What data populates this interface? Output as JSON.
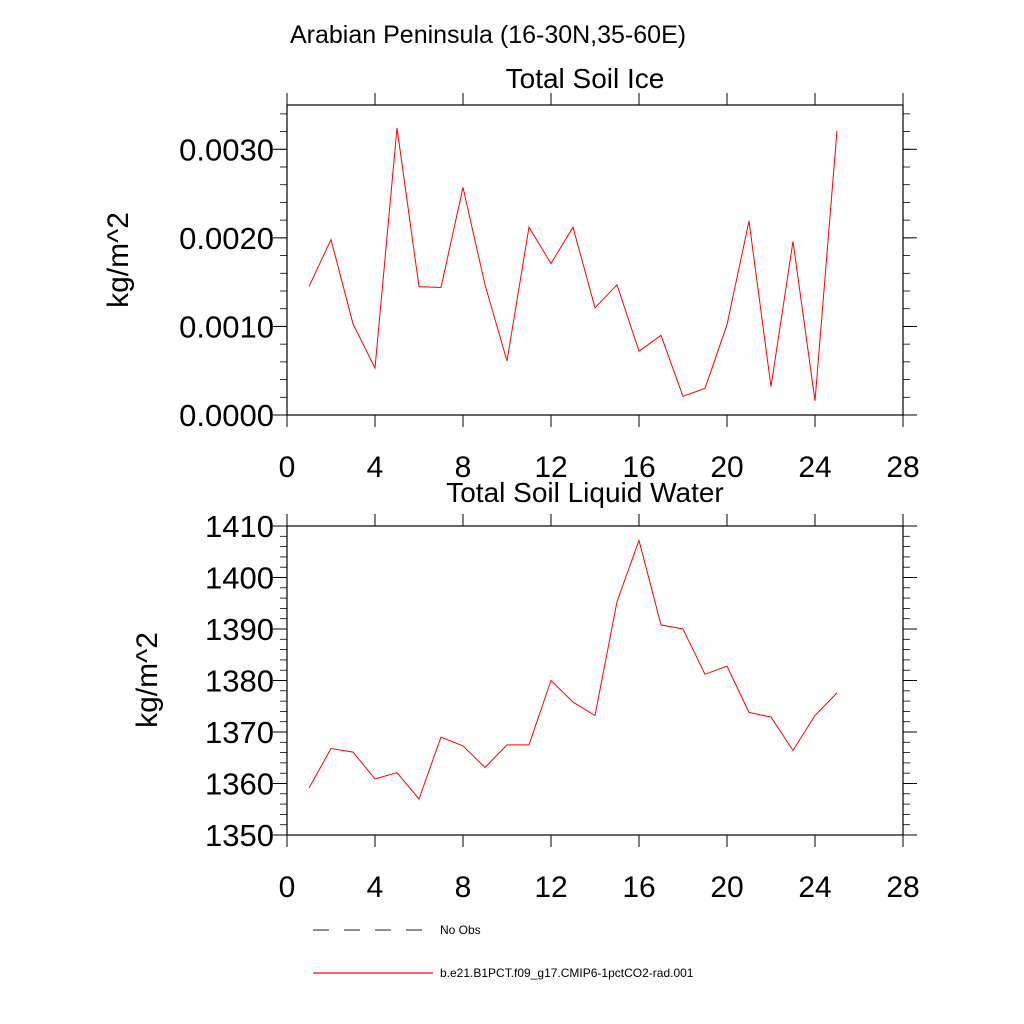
{
  "figure_title": "Arabian Peninsula (16-30N,35-60E)",
  "legend": {
    "placement": "bottom-left",
    "entries": [
      {
        "label": "No Obs",
        "color": "#4a4a7a",
        "style": "dashed"
      },
      {
        "label": "b.e21.B1PCT.f09_g17.CMIP6-1pctCO2-rad.001",
        "color": "#ff0000",
        "style": "solid"
      }
    ]
  },
  "chart_data": [
    {
      "type": "line",
      "title": "Total Soil Ice",
      "xlabel": "",
      "ylabel": "kg/m^2",
      "xlim": [
        0,
        28
      ],
      "ylim": [
        0,
        0.0035
      ],
      "xticks": [
        "0",
        "4",
        "8",
        "12",
        "16",
        "20",
        "24",
        "28"
      ],
      "yticks": [
        "0.0000",
        "0.0010",
        "0.0020",
        "0.0030"
      ],
      "grid": false,
      "series": [
        {
          "color": "#ff0000",
          "x": [
            1,
            2,
            3,
            4,
            5,
            6,
            7,
            8,
            9,
            10,
            11,
            12,
            13,
            14,
            15,
            16,
            17,
            18,
            19,
            20,
            21,
            22,
            23,
            24,
            25
          ],
          "y": [
            0.00145,
            0.00198,
            0.00103,
            0.00053,
            0.00324,
            0.00145,
            0.00144,
            0.00257,
            0.00147,
            0.00061,
            0.00212,
            0.00171,
            0.00212,
            0.00121,
            0.00147,
            0.00072,
            0.0009,
            0.00021,
            0.0003,
            0.00102,
            0.00219,
            0.00032,
            0.00196,
            0.00016,
            0.00321
          ]
        }
      ]
    },
    {
      "type": "line",
      "title": "Total Soil Liquid Water",
      "xlabel": "",
      "ylabel": "kg/m^2",
      "xlim": [
        0,
        28
      ],
      "ylim": [
        1350,
        1410
      ],
      "xticks": [
        "0",
        "4",
        "8",
        "12",
        "16",
        "20",
        "24",
        "28"
      ],
      "yticks": [
        "1350",
        "1360",
        "1370",
        "1380",
        "1390",
        "1400",
        "1410"
      ],
      "grid": false,
      "series": [
        {
          "color": "#ff0000",
          "x": [
            1,
            2,
            3,
            4,
            5,
            6,
            7,
            8,
            9,
            10,
            11,
            12,
            13,
            14,
            15,
            16,
            17,
            18,
            19,
            20,
            21,
            22,
            23,
            24,
            25
          ],
          "y": [
            1359.1,
            1366.8,
            1366.1,
            1360.9,
            1362.1,
            1357.0,
            1369.0,
            1367.3,
            1363.1,
            1367.5,
            1367.5,
            1380.0,
            1375.8,
            1373.2,
            1395.3,
            1407.2,
            1390.8,
            1390.0,
            1381.2,
            1382.8,
            1373.8,
            1372.9,
            1366.4,
            1373.2,
            1377.6
          ]
        }
      ]
    }
  ]
}
